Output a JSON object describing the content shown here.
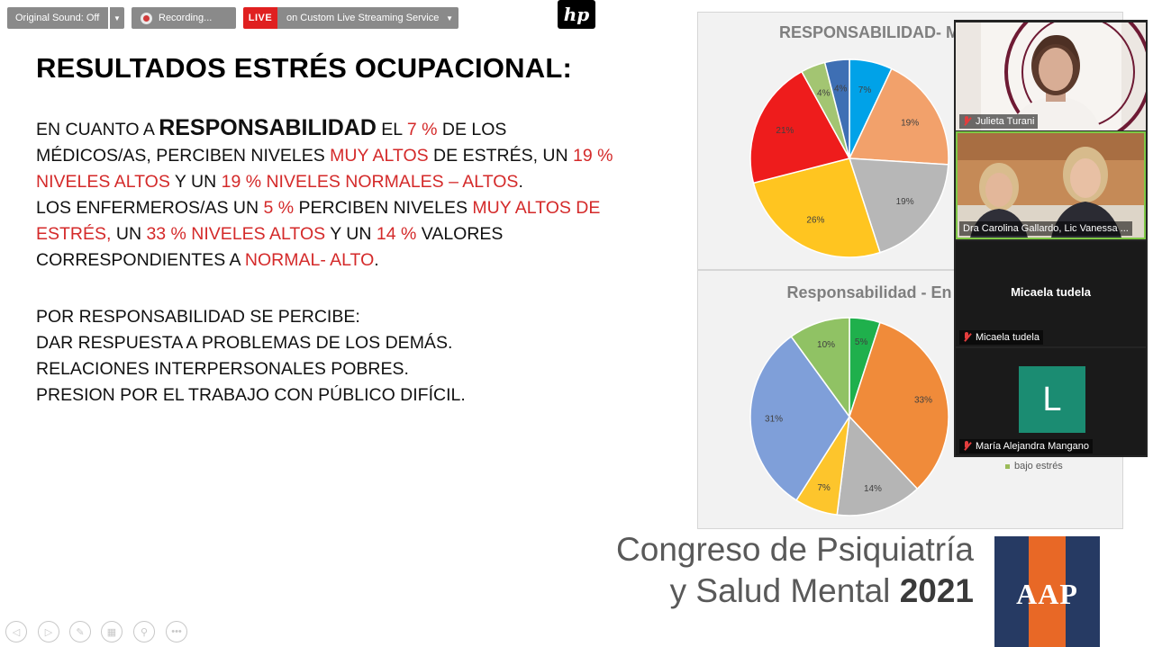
{
  "toolbar": {
    "original_sound": "Original Sound: Off",
    "recording": "Recording...",
    "live": "LIVE",
    "stream_service": "on Custom Live Streaming Service"
  },
  "logo_text": "hp",
  "slide": {
    "title": "RESULTADOS ESTRÉS OCUPACIONAL:",
    "para1": {
      "l1a": "EN CUANTO A ",
      "l1b": "RESPONSABILIDAD",
      "l1c": " EL ",
      "l1d": "7 %",
      "l1e": " DE LOS",
      "l2a": "MÉDICOS/AS, PERCIBEN NIVELES ",
      "l2b": "MUY ALTOS",
      "l2c": " DE ESTRÉS, UN ",
      "l2d": "19 %",
      "l3a": "NIVELES ALTOS",
      "l3b": " Y UN ",
      "l3c": "19 % NIVELES NORMALES – ALTOS",
      "l3d": ".",
      "l4a": "LOS ENFERMEROS/AS UN ",
      "l4b": "5 %",
      "l4c": " PERCIBEN NIVELES ",
      "l4d": "MUY ALTOS DE",
      "l5a": "ESTRÉS,",
      "l5b": " UN ",
      "l5c": "33 % NIVELES ALTOS",
      "l5d": " Y UN ",
      "l5e": "14 %",
      "l5f": "  VALORES",
      "l6a": "CORRESPONDIENTES A ",
      "l6b": "NORMAL- ALTO",
      "l6c": "."
    },
    "para2": [
      "POR RESPONSABILIDAD SE PERCIBE:",
      "DAR RESPUESTA A PROBLEMAS DE LOS DEMÁS.",
      "RELACIONES INTERPERSONALES POBRES.",
      "PRESION POR EL TRABAJO CON PÚBLICO DIFÍCIL."
    ]
  },
  "chart_data": [
    {
      "type": "pie",
      "title": "RESPONSABILIDAD- M",
      "labels": [
        "7%",
        "19%",
        "19%",
        "26%",
        "21%",
        "4%",
        "4%"
      ],
      "values": [
        7,
        19,
        19,
        26,
        21,
        4,
        4
      ],
      "colors": [
        "#00a2e8",
        "#f2a16b",
        "#b7b7b7",
        "#ffc520",
        "#ee1c1c",
        "#a3c572",
        "#3e6fb4"
      ],
      "label_colors": [
        "#404040",
        "#404040",
        "#404040",
        "#404040",
        "#7a0000",
        "#404040",
        "#404040"
      ]
    },
    {
      "type": "pie",
      "title": "Responsabilidad - En",
      "labels": [
        "5%",
        "33%",
        "14%",
        "7%",
        "31%",
        "10%"
      ],
      "values": [
        5,
        33,
        14,
        7,
        31,
        10
      ],
      "colors": [
        "#1fb04c",
        "#f08b3a",
        "#b5b5b5",
        "#fdc52c",
        "#7f9fd9",
        "#90c264"
      ],
      "legend": [
        "bajo estrés"
      ],
      "legend_color": "#9bbb59"
    }
  ],
  "participants": [
    {
      "name": "Julieta Turani"
    },
    {
      "name": "Dra Carolina Gallardo, Lic Vanessa ..."
    },
    {
      "name": "Micaela tudela",
      "center_name": "Micaela tudela"
    },
    {
      "name": "María Alejandra Mangano",
      "initial": "L"
    }
  ],
  "footer": {
    "line1": "Congreso de Psiquiatría",
    "line2a": "y Salud Mental ",
    "line2b": "2021",
    "logo": "AAP"
  },
  "controls": [
    "prev-icon",
    "next-icon",
    "pen-icon",
    "slides-icon",
    "zoom-icon",
    "more-icon"
  ]
}
